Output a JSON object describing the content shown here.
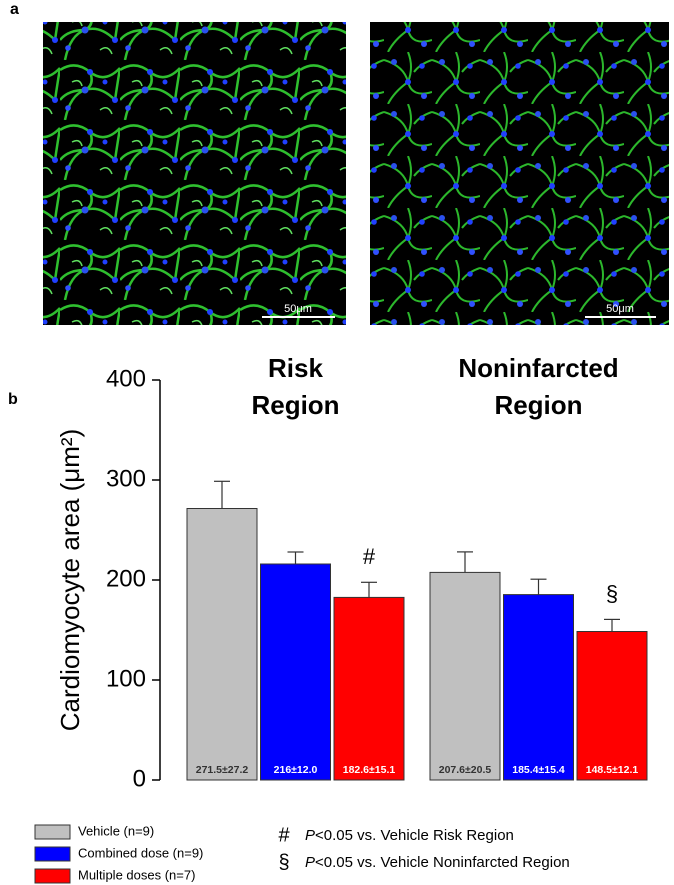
{
  "panel_labels": [
    "a",
    "b"
  ],
  "images": [
    {
      "scale_bar": "50μm"
    },
    {
      "scale_bar": "50μm"
    }
  ],
  "chart_data": {
    "type": "bar",
    "ylabel": "Cardiomyocyte area (μm²)",
    "categories": [
      "Risk Region",
      "Noninfarcted Region"
    ],
    "series": [
      {
        "name": "Vehicle (n=9)",
        "color": "#c0c0c0",
        "values": [
          271.5,
          207.6
        ],
        "errors": [
          27.2,
          20.5
        ],
        "value_labels": [
          "271.5±27.2",
          "207.6±20.5"
        ],
        "label_color": "#333333"
      },
      {
        "name": "Combined dose (n=9)",
        "color": "#0000ff",
        "values": [
          216,
          185.4
        ],
        "errors": [
          12.0,
          15.4
        ],
        "value_labels": [
          "216±12.0",
          "185.4±15.4"
        ],
        "label_color": "#ffffff"
      },
      {
        "name": "Multiple doses (n=7)",
        "color": "#ff0000",
        "values": [
          182.6,
          148.5
        ],
        "errors": [
          15.1,
          12.1
        ],
        "value_labels": [
          "182.6±15.1",
          "148.5±12.1"
        ],
        "label_color": "#ffffff",
        "annotations": [
          "#",
          "§"
        ]
      }
    ],
    "ylim": [
      0,
      400
    ],
    "yticks": [
      0,
      100,
      200,
      300,
      400
    ],
    "grid": false,
    "footnotes": [
      {
        "symbol": "#",
        "italic": "P",
        "text": "<0.05 vs. Vehicle Risk Region"
      },
      {
        "symbol": "§",
        "italic": "P",
        "text": "<0.05 vs. Vehicle Noninfarcted Region"
      }
    ]
  }
}
